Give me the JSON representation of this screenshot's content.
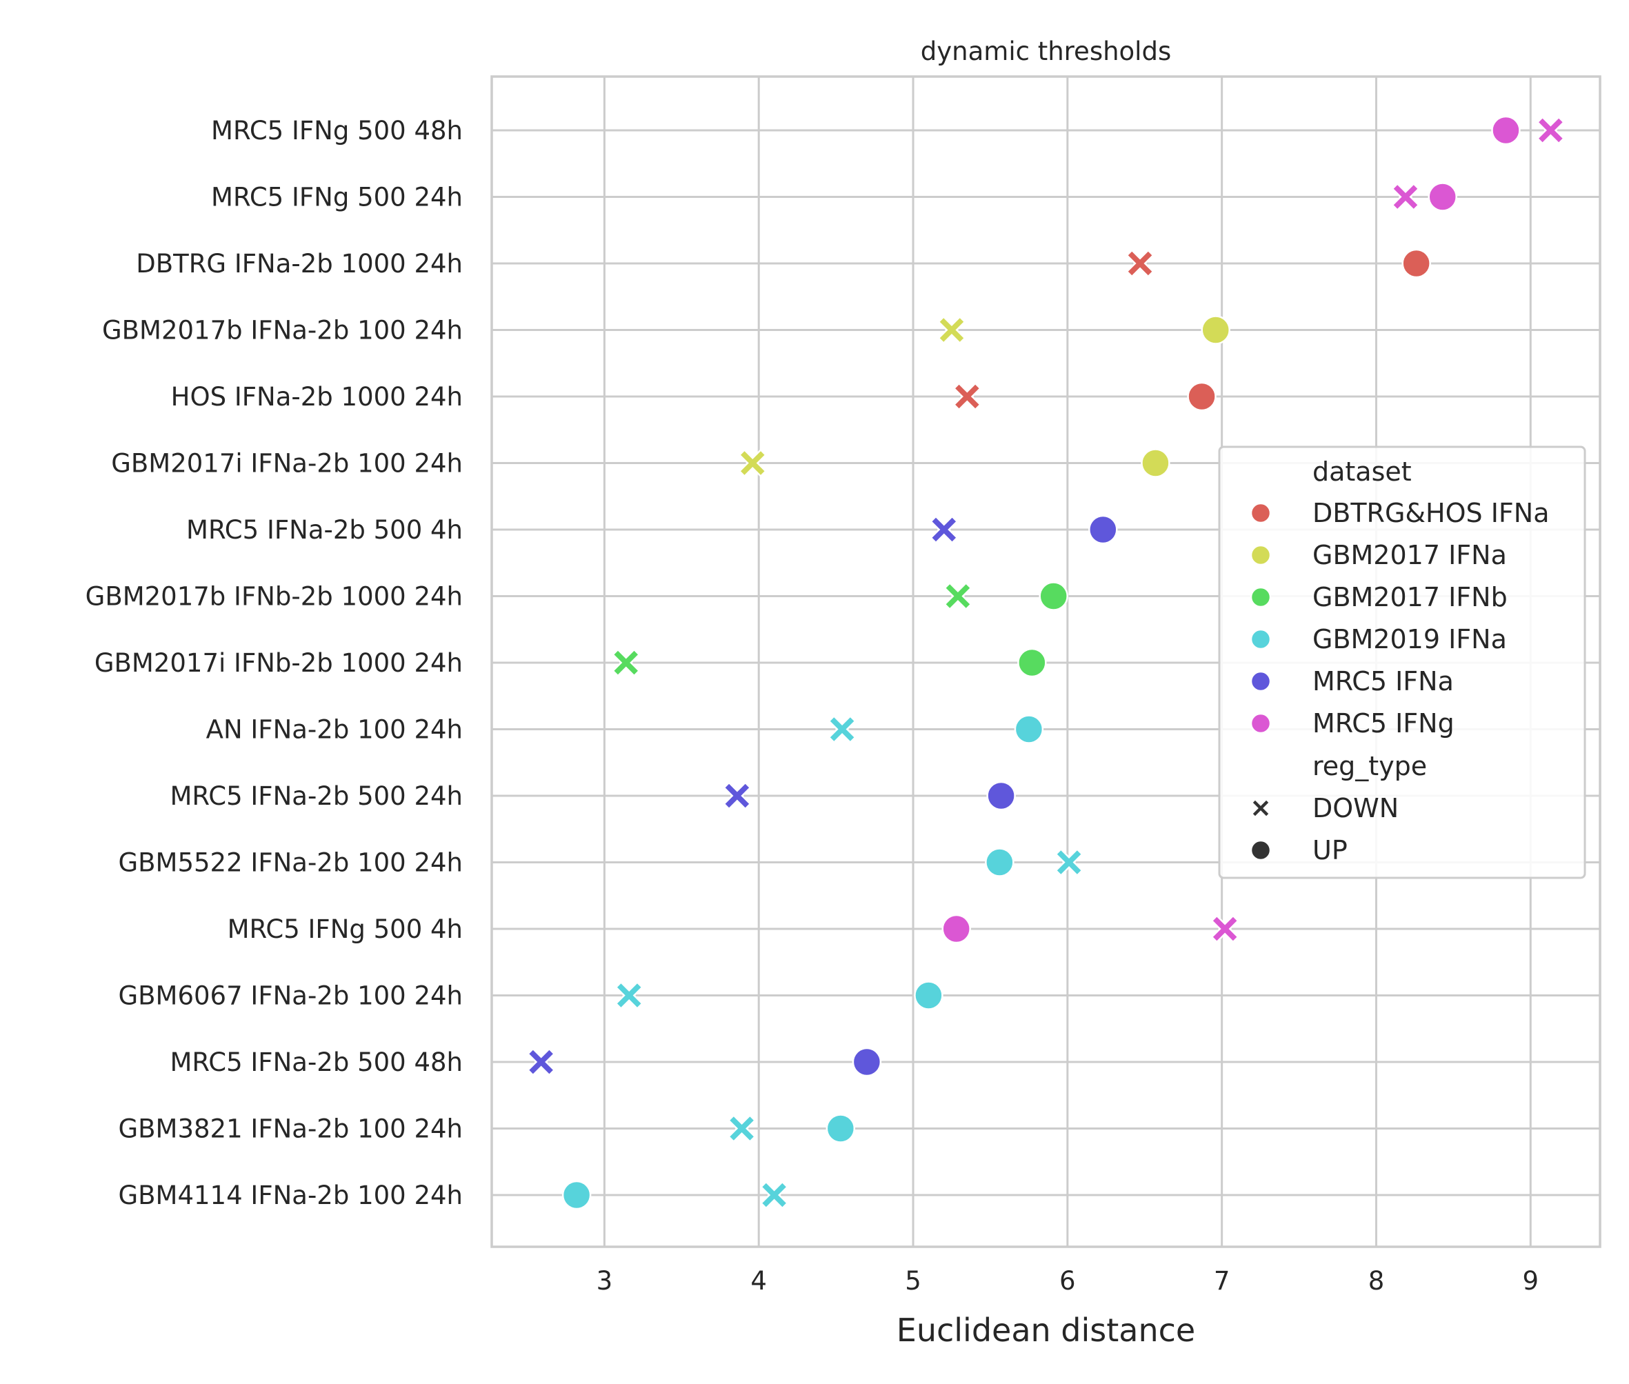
{
  "chart_data": {
    "type": "scatter",
    "title": "dynamic thresholds",
    "xlabel": "Euclidean distance",
    "ylabel": "",
    "xlim": [
      2.27,
      9.45
    ],
    "xticks": [
      3,
      4,
      5,
      6,
      7,
      8,
      9
    ],
    "grid": true,
    "legend_placement": "right",
    "categories": [
      "MRC5 IFNg 500 48h",
      "MRC5 IFNg 500 24h",
      "DBTRG IFNa-2b 1000 24h",
      "GBM2017b IFNa-2b 100 24h",
      "HOS IFNa-2b 1000 24h",
      "GBM2017i IFNa-2b 100 24h",
      "MRC5 IFNa-2b 500 4h",
      "GBM2017b IFNb-2b 1000 24h",
      "GBM2017i IFNb-2b 1000 24h",
      "AN IFNa-2b 100 24h",
      "MRC5 IFNa-2b 500 24h",
      "GBM5522 IFNa-2b 100 24h",
      "MRC5 IFNg 500 4h",
      "GBM6067 IFNa-2b 100 24h",
      "MRC5 IFNa-2b 500 48h",
      "GBM3821 IFNa-2b 100 24h",
      "GBM4114 IFNa-2b 100 24h"
    ],
    "hue_title": "dataset",
    "style_title": "reg_type",
    "datasets": [
      {
        "name": "DBTRG&HOS IFNa",
        "color": "#db5f57"
      },
      {
        "name": "GBM2017 IFNa",
        "color": "#d3db57"
      },
      {
        "name": "GBM2017 IFNb",
        "color": "#57db5f"
      },
      {
        "name": "GBM2019 IFNa",
        "color": "#57d3db"
      },
      {
        "name": "MRC5 IFNa",
        "color": "#5f57db"
      },
      {
        "name": "MRC5 IFNg",
        "color": "#db57d3"
      }
    ],
    "reg_types": [
      {
        "name": "DOWN",
        "marker": "x"
      },
      {
        "name": "UP",
        "marker": "circle"
      }
    ],
    "points": [
      {
        "y": "MRC5 IFNg 500 48h",
        "dataset": "MRC5 IFNg",
        "reg_type": "UP",
        "x": 8.84
      },
      {
        "y": "MRC5 IFNg 500 48h",
        "dataset": "MRC5 IFNg",
        "reg_type": "DOWN",
        "x": 9.13
      },
      {
        "y": "MRC5 IFNg 500 24h",
        "dataset": "MRC5 IFNg",
        "reg_type": "DOWN",
        "x": 8.19
      },
      {
        "y": "MRC5 IFNg 500 24h",
        "dataset": "MRC5 IFNg",
        "reg_type": "UP",
        "x": 8.43
      },
      {
        "y": "DBTRG IFNa-2b 1000 24h",
        "dataset": "DBTRG&HOS IFNa",
        "reg_type": "DOWN",
        "x": 6.47
      },
      {
        "y": "DBTRG IFNa-2b 1000 24h",
        "dataset": "DBTRG&HOS IFNa",
        "reg_type": "UP",
        "x": 8.26
      },
      {
        "y": "GBM2017b IFNa-2b 100 24h",
        "dataset": "GBM2017 IFNa",
        "reg_type": "DOWN",
        "x": 5.25
      },
      {
        "y": "GBM2017b IFNa-2b 100 24h",
        "dataset": "GBM2017 IFNa",
        "reg_type": "UP",
        "x": 6.96
      },
      {
        "y": "HOS IFNa-2b 1000 24h",
        "dataset": "DBTRG&HOS IFNa",
        "reg_type": "DOWN",
        "x": 5.35
      },
      {
        "y": "HOS IFNa-2b 1000 24h",
        "dataset": "DBTRG&HOS IFNa",
        "reg_type": "UP",
        "x": 6.87
      },
      {
        "y": "GBM2017i IFNa-2b 100 24h",
        "dataset": "GBM2017 IFNa",
        "reg_type": "DOWN",
        "x": 3.96
      },
      {
        "y": "GBM2017i IFNa-2b 100 24h",
        "dataset": "GBM2017 IFNa",
        "reg_type": "UP",
        "x": 6.57
      },
      {
        "y": "MRC5 IFNa-2b 500 4h",
        "dataset": "MRC5 IFNa",
        "reg_type": "DOWN",
        "x": 5.2
      },
      {
        "y": "MRC5 IFNa-2b 500 4h",
        "dataset": "MRC5 IFNa",
        "reg_type": "UP",
        "x": 6.23
      },
      {
        "y": "GBM2017b IFNb-2b 1000 24h",
        "dataset": "GBM2017 IFNb",
        "reg_type": "DOWN",
        "x": 5.29
      },
      {
        "y": "GBM2017b IFNb-2b 1000 24h",
        "dataset": "GBM2017 IFNb",
        "reg_type": "UP",
        "x": 5.91
      },
      {
        "y": "GBM2017i IFNb-2b 1000 24h",
        "dataset": "GBM2017 IFNb",
        "reg_type": "DOWN",
        "x": 3.14
      },
      {
        "y": "GBM2017i IFNb-2b 1000 24h",
        "dataset": "GBM2017 IFNb",
        "reg_type": "UP",
        "x": 5.77
      },
      {
        "y": "AN IFNa-2b 100 24h",
        "dataset": "GBM2019 IFNa",
        "reg_type": "DOWN",
        "x": 4.54
      },
      {
        "y": "AN IFNa-2b 100 24h",
        "dataset": "GBM2019 IFNa",
        "reg_type": "UP",
        "x": 5.75
      },
      {
        "y": "MRC5 IFNa-2b 500 24h",
        "dataset": "MRC5 IFNa",
        "reg_type": "DOWN",
        "x": 3.86
      },
      {
        "y": "MRC5 IFNa-2b 500 24h",
        "dataset": "MRC5 IFNa",
        "reg_type": "UP",
        "x": 5.57
      },
      {
        "y": "GBM5522 IFNa-2b 100 24h",
        "dataset": "GBM2019 IFNa",
        "reg_type": "UP",
        "x": 5.56
      },
      {
        "y": "GBM5522 IFNa-2b 100 24h",
        "dataset": "GBM2019 IFNa",
        "reg_type": "DOWN",
        "x": 6.01
      },
      {
        "y": "MRC5 IFNg 500 4h",
        "dataset": "MRC5 IFNg",
        "reg_type": "UP",
        "x": 5.28
      },
      {
        "y": "MRC5 IFNg 500 4h",
        "dataset": "MRC5 IFNg",
        "reg_type": "DOWN",
        "x": 7.02
      },
      {
        "y": "GBM6067 IFNa-2b 100 24h",
        "dataset": "GBM2019 IFNa",
        "reg_type": "DOWN",
        "x": 3.16
      },
      {
        "y": "GBM6067 IFNa-2b 100 24h",
        "dataset": "GBM2019 IFNa",
        "reg_type": "UP",
        "x": 5.1
      },
      {
        "y": "MRC5 IFNa-2b 500 48h",
        "dataset": "MRC5 IFNa",
        "reg_type": "DOWN",
        "x": 2.59
      },
      {
        "y": "MRC5 IFNa-2b 500 48h",
        "dataset": "MRC5 IFNa",
        "reg_type": "UP",
        "x": 4.7
      },
      {
        "y": "GBM3821 IFNa-2b 100 24h",
        "dataset": "GBM2019 IFNa",
        "reg_type": "DOWN",
        "x": 3.89
      },
      {
        "y": "GBM3821 IFNa-2b 100 24h",
        "dataset": "GBM2019 IFNa",
        "reg_type": "UP",
        "x": 4.53
      },
      {
        "y": "GBM4114 IFNa-2b 100 24h",
        "dataset": "GBM2019 IFNa",
        "reg_type": "UP",
        "x": 2.82
      },
      {
        "y": "GBM4114 IFNa-2b 100 24h",
        "dataset": "GBM2019 IFNa",
        "reg_type": "DOWN",
        "x": 4.1
      }
    ]
  }
}
